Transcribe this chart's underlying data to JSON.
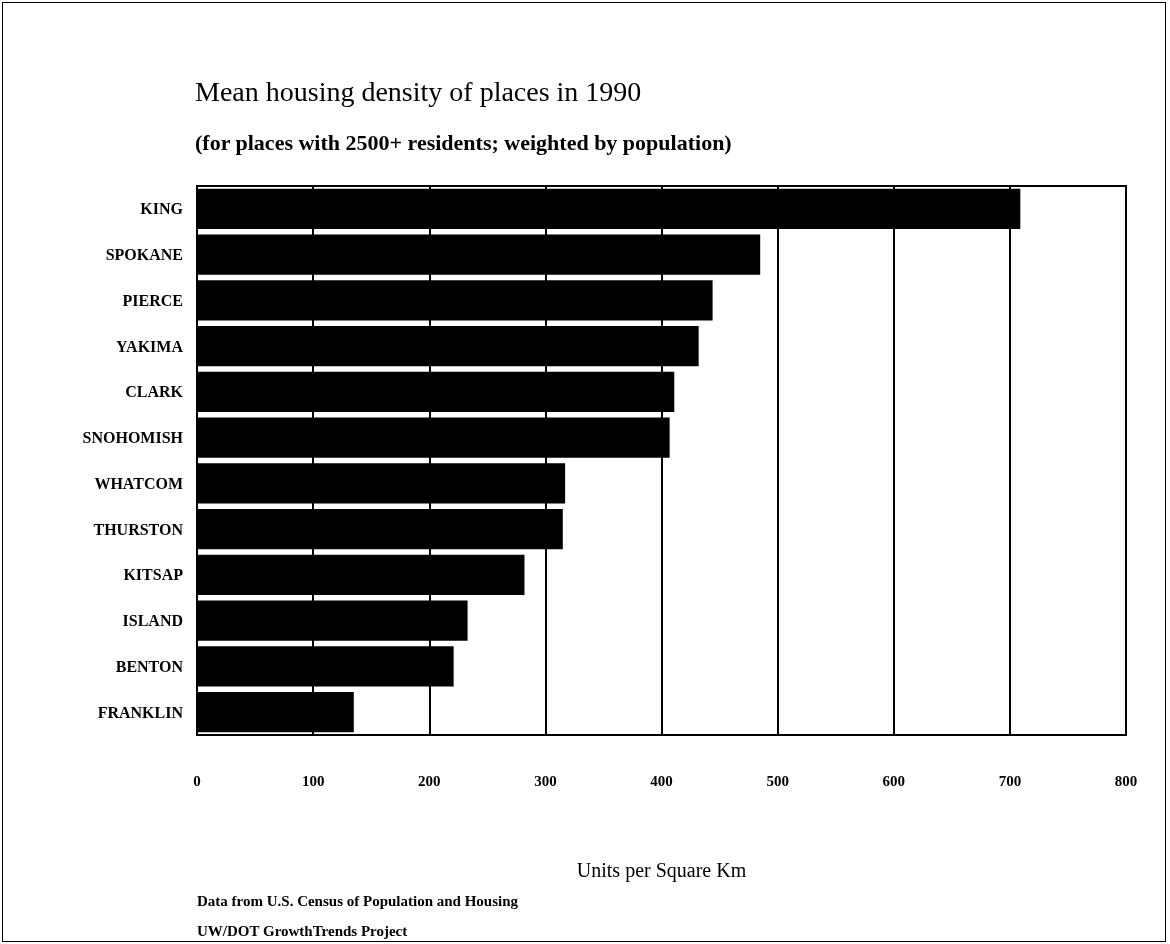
{
  "chart_data": {
    "type": "bar",
    "orientation": "horizontal",
    "title": "Mean housing density of places in 1990",
    "subtitle": "(for places with 2500+ residents; weighted by population)",
    "categories": [
      "KING",
      "SPOKANE",
      "PIERCE",
      "YAKIMA",
      "CLARK",
      "SNOHOMISH",
      "WHATCOM",
      "THURSTON",
      "KITSAP",
      "ISLAND",
      "BENTON",
      "FRANKLIN"
    ],
    "values": [
      709,
      485,
      444,
      432,
      411,
      407,
      317,
      315,
      282,
      233,
      221,
      135
    ],
    "color": "#000000",
    "xlim": [
      0,
      800
    ],
    "xticks": [
      0,
      100,
      200,
      300,
      400,
      500,
      600,
      700,
      800
    ],
    "xlabel": "Units per Square Km",
    "grid": "x",
    "annotations": [
      "Data from U.S. Census of Population and Housing",
      "UW/DOT GrowthTrends Project"
    ]
  }
}
